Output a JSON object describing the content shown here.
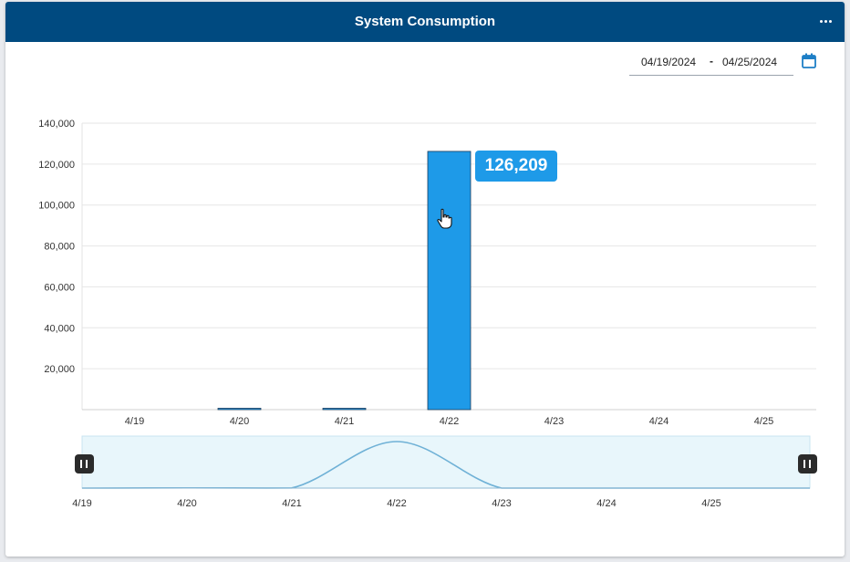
{
  "header": {
    "title": "System Consumption"
  },
  "date_range": {
    "start": "04/19/2024",
    "separator": "-",
    "end": "04/25/2024"
  },
  "icons": {
    "menu": "more-horizontal-icon",
    "calendar": "calendar-icon",
    "cursor": "hand-pointer-icon",
    "handle": "pause-handle-icon"
  },
  "colors": {
    "header": "#004a80",
    "bar": "#1e9ae8",
    "navigator_fill": "#e8f6fb",
    "navigator_line": "#6fb1d6"
  },
  "tooltip": {
    "value": "126,209"
  },
  "chart_data": {
    "type": "bar",
    "categories": [
      "4/19",
      "4/20",
      "4/21",
      "4/22",
      "4/23",
      "4/24",
      "4/25"
    ],
    "values": [
      0,
      600,
      400,
      126209,
      0,
      0,
      0
    ],
    "ylim": [
      0,
      140000
    ],
    "yticks": [
      20000,
      40000,
      60000,
      80000,
      100000,
      120000,
      140000
    ],
    "ytick_labels": [
      "20,000",
      "40,000",
      "60,000",
      "80,000",
      "100,000",
      "120,000",
      "140,000"
    ],
    "grid": true,
    "legend": "none",
    "navigator": {
      "type": "area",
      "x_labels": [
        "4/19",
        "4/20",
        "4/21",
        "4/22",
        "4/23",
        "4/24",
        "4/25"
      ]
    }
  }
}
